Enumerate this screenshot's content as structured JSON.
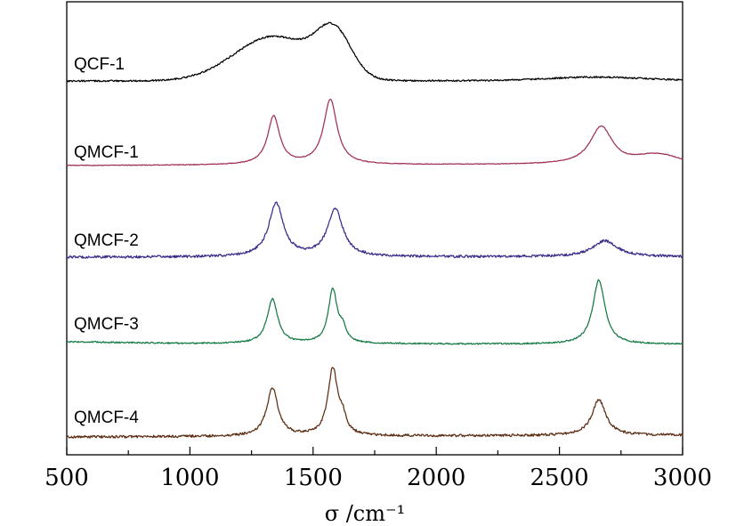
{
  "chart_data": {
    "type": "line",
    "title": "",
    "xlabel": "σ /cm⁻¹",
    "ylabel": "",
    "xlim": [
      500,
      3000
    ],
    "xticks": [
      500,
      1000,
      1500,
      2000,
      2500,
      3000
    ],
    "x_tick_labels": [
      "500",
      "1000",
      "1500",
      "2000",
      "2500",
      "3000"
    ],
    "y_ticks_visible": false,
    "grid": false,
    "stacked_offsets": true,
    "series": [
      {
        "name": "QCF-1",
        "color": "#000000",
        "noise": 0.9,
        "baseline": [
          [
            500,
            0.0
          ],
          [
            3000,
            0.4
          ]
        ],
        "peaks": [
          {
            "center": 1340,
            "height": 50,
            "width": 160,
            "shape": "gauss"
          },
          {
            "center": 1585,
            "height": 48,
            "width": 70,
            "shape": "gauss"
          },
          {
            "center": 2650,
            "height": 4,
            "width": 200,
            "shape": "gauss"
          }
        ]
      },
      {
        "name": "QMCF-1",
        "color": "#a0305a",
        "noise": 0.4,
        "baseline": [
          [
            500,
            0.0
          ],
          [
            2200,
            1.0
          ],
          [
            3000,
            1.5
          ]
        ],
        "peaks": [
          {
            "center": 1340,
            "height": 54,
            "width": 30,
            "shape": "lorentz"
          },
          {
            "center": 1570,
            "height": 73,
            "width": 33,
            "shape": "lorentz"
          },
          {
            "center": 2670,
            "height": 43,
            "width": 55,
            "shape": "lorentz"
          },
          {
            "center": 2900,
            "height": 10,
            "width": 80,
            "shape": "gauss"
          }
        ]
      },
      {
        "name": "QMCF-2",
        "color": "#3a2a8a",
        "noise": 1.4,
        "baseline": [
          [
            500,
            0.0
          ],
          [
            3000,
            0.5
          ]
        ],
        "peaks": [
          {
            "center": 1350,
            "height": 60,
            "width": 36,
            "shape": "lorentz"
          },
          {
            "center": 1590,
            "height": 53,
            "width": 38,
            "shape": "lorentz"
          },
          {
            "center": 2685,
            "height": 18,
            "width": 60,
            "shape": "lorentz"
          }
        ]
      },
      {
        "name": "QMCF-3",
        "color": "#157a45",
        "noise": 0.8,
        "baseline": [
          [
            500,
            2.0
          ],
          [
            1000,
            0.0
          ],
          [
            3000,
            -1.0
          ]
        ],
        "peaks": [
          {
            "center": 1335,
            "height": 50,
            "width": 26,
            "shape": "lorentz"
          },
          {
            "center": 1580,
            "height": 60,
            "width": 22,
            "shape": "lorentz"
          },
          {
            "center": 1620,
            "height": 14,
            "width": 16,
            "shape": "lorentz"
          },
          {
            "center": 2660,
            "height": 72,
            "width": 30,
            "shape": "lorentz"
          }
        ]
      },
      {
        "name": "QMCF-4",
        "color": "#5c2e14",
        "noise": 1.4,
        "baseline": [
          [
            500,
            0.0
          ],
          [
            3000,
            2.0
          ]
        ],
        "peaks": [
          {
            "center": 1335,
            "height": 54,
            "width": 28,
            "shape": "lorentz"
          },
          {
            "center": 1580,
            "height": 75,
            "width": 24,
            "shape": "lorentz"
          },
          {
            "center": 1620,
            "height": 16,
            "width": 16,
            "shape": "lorentz"
          },
          {
            "center": 2660,
            "height": 40,
            "width": 34,
            "shape": "lorentz"
          }
        ]
      }
    ]
  }
}
